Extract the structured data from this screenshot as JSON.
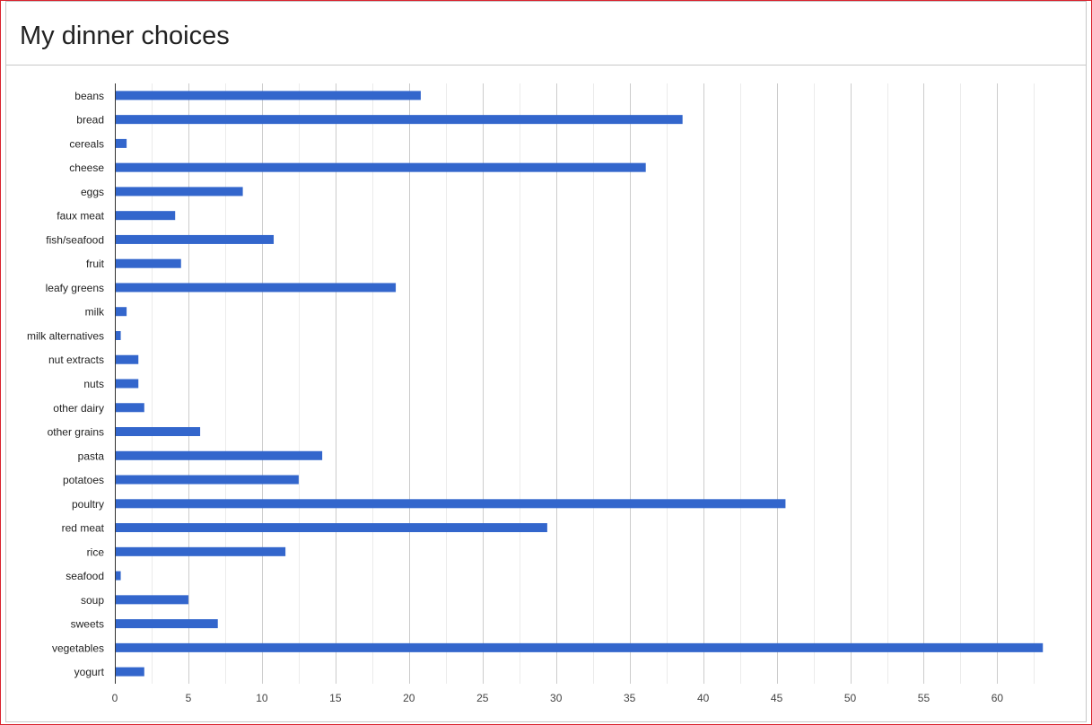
{
  "page": {
    "title": "My dinner choices"
  },
  "chart_data": {
    "type": "bar",
    "orientation": "horizontal",
    "title": "My dinner choices",
    "xlabel": "",
    "ylabel": "",
    "xlim": [
      0,
      64
    ],
    "xticks": [
      0,
      5,
      10,
      15,
      20,
      25,
      30,
      35,
      40,
      45,
      50,
      55,
      60
    ],
    "grid": true,
    "bar_color": "#3366cc",
    "categories": [
      "beans",
      "bread",
      "cereals",
      "cheese",
      "eggs",
      "faux meat",
      "fish/seafood",
      "fruit",
      "leafy greens",
      "milk",
      "milk alternatives",
      "nut extracts",
      "nuts",
      "other dairy",
      "other grains",
      "pasta",
      "potatoes",
      "poultry",
      "red meat",
      "rice",
      "seafood",
      "soup",
      "sweets",
      "vegetables",
      "yogurt"
    ],
    "values": [
      20.8,
      38.6,
      0.8,
      36.1,
      8.7,
      4.1,
      10.8,
      4.5,
      19.1,
      0.8,
      0.4,
      1.6,
      1.6,
      2.0,
      5.8,
      14.1,
      12.5,
      45.6,
      29.4,
      11.6,
      0.4,
      5.0,
      7.0,
      63.1,
      2.0
    ]
  }
}
